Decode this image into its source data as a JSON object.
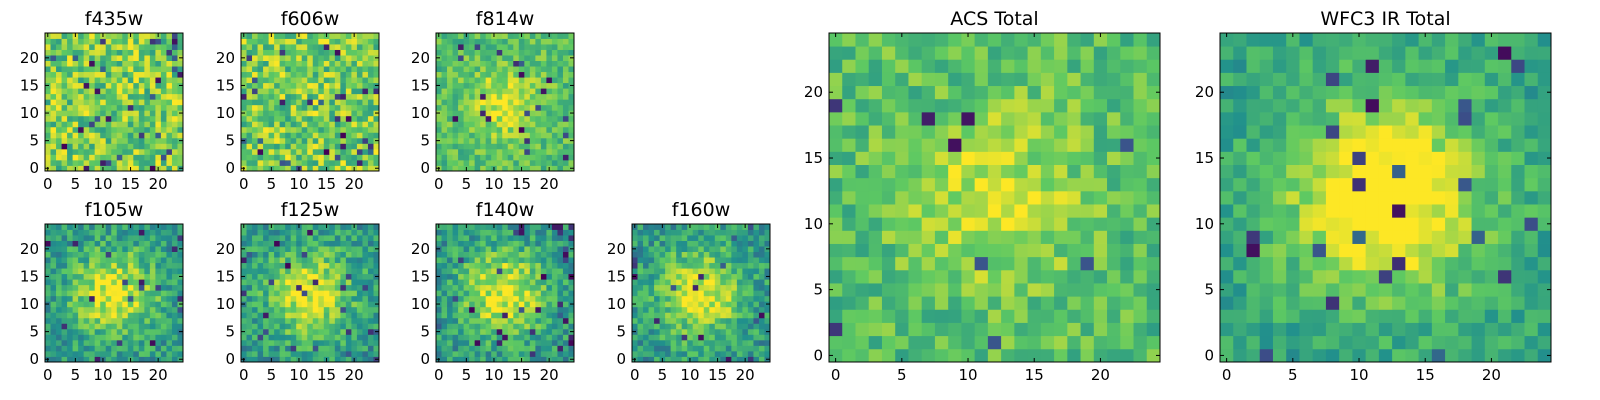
{
  "chart_data": [
    {
      "type": "heatmap",
      "title": "f435w",
      "xticks": [
        "0",
        "5",
        "10",
        "15",
        "20"
      ],
      "yticks": [
        "0",
        "5",
        "10",
        "15",
        "20"
      ],
      "xlim": [
        0,
        25
      ],
      "ylim": [
        0,
        25
      ],
      "colormap": "viridis",
      "structure": "noise",
      "grid": false
    },
    {
      "type": "heatmap",
      "title": "f606w",
      "xticks": [
        "0",
        "5",
        "10",
        "15",
        "20"
      ],
      "yticks": [
        "0",
        "5",
        "10",
        "15",
        "20"
      ],
      "xlim": [
        0,
        25
      ],
      "ylim": [
        0,
        25
      ],
      "colormap": "viridis",
      "structure": "noise",
      "grid": false
    },
    {
      "type": "heatmap",
      "title": "f814w",
      "xticks": [
        "0",
        "5",
        "10",
        "15",
        "20"
      ],
      "yticks": [
        "0",
        "5",
        "10",
        "15",
        "20"
      ],
      "xlim": [
        0,
        25
      ],
      "ylim": [
        0,
        25
      ],
      "colormap": "viridis",
      "structure": "faint-source",
      "grid": false
    },
    {
      "type": "heatmap",
      "title": "f105w",
      "xticks": [
        "0",
        "5",
        "10",
        "15",
        "20"
      ],
      "yticks": [
        "0",
        "5",
        "10",
        "15",
        "20"
      ],
      "xlim": [
        0,
        25
      ],
      "ylim": [
        0,
        25
      ],
      "colormap": "viridis",
      "structure": "extended-source",
      "grid": false
    },
    {
      "type": "heatmap",
      "title": "f125w",
      "xticks": [
        "0",
        "5",
        "10",
        "15",
        "20"
      ],
      "yticks": [
        "0",
        "5",
        "10",
        "15",
        "20"
      ],
      "xlim": [
        0,
        25
      ],
      "ylim": [
        0,
        25
      ],
      "colormap": "viridis",
      "structure": "extended-source",
      "grid": false
    },
    {
      "type": "heatmap",
      "title": "f140w",
      "xticks": [
        "0",
        "5",
        "10",
        "15",
        "20"
      ],
      "yticks": [
        "0",
        "5",
        "10",
        "15",
        "20"
      ],
      "xlim": [
        0,
        25
      ],
      "ylim": [
        0,
        25
      ],
      "colormap": "viridis",
      "structure": "extended-source",
      "grid": false
    },
    {
      "type": "heatmap",
      "title": "f160w",
      "xticks": [
        "0",
        "5",
        "10",
        "15",
        "20"
      ],
      "yticks": [
        "0",
        "5",
        "10",
        "15",
        "20"
      ],
      "xlim": [
        0,
        25
      ],
      "ylim": [
        0,
        25
      ],
      "colormap": "viridis",
      "structure": "extended-source",
      "grid": false
    },
    {
      "type": "heatmap",
      "title": "ACS Total",
      "xticks": [
        "0",
        "5",
        "10",
        "15",
        "20"
      ],
      "yticks": [
        "0",
        "5",
        "10",
        "15",
        "20"
      ],
      "xlim": [
        0,
        25
      ],
      "ylim": [
        0,
        25
      ],
      "colormap": "viridis",
      "structure": "faint-source",
      "grid": false
    },
    {
      "type": "heatmap",
      "title": "WFC3 IR Total",
      "xticks": [
        "0",
        "5",
        "10",
        "15",
        "20"
      ],
      "yticks": [
        "0",
        "5",
        "10",
        "15",
        "20"
      ],
      "xlim": [
        0,
        25
      ],
      "ylim": [
        0,
        25
      ],
      "colormap": "viridis",
      "structure": "bright-source",
      "grid": false
    }
  ],
  "colors": {
    "viridis_stops": [
      "#440154",
      "#3b528b",
      "#21918c",
      "#5ec962",
      "#fde725"
    ],
    "axes_edge": "#000000",
    "background": "#ffffff"
  }
}
